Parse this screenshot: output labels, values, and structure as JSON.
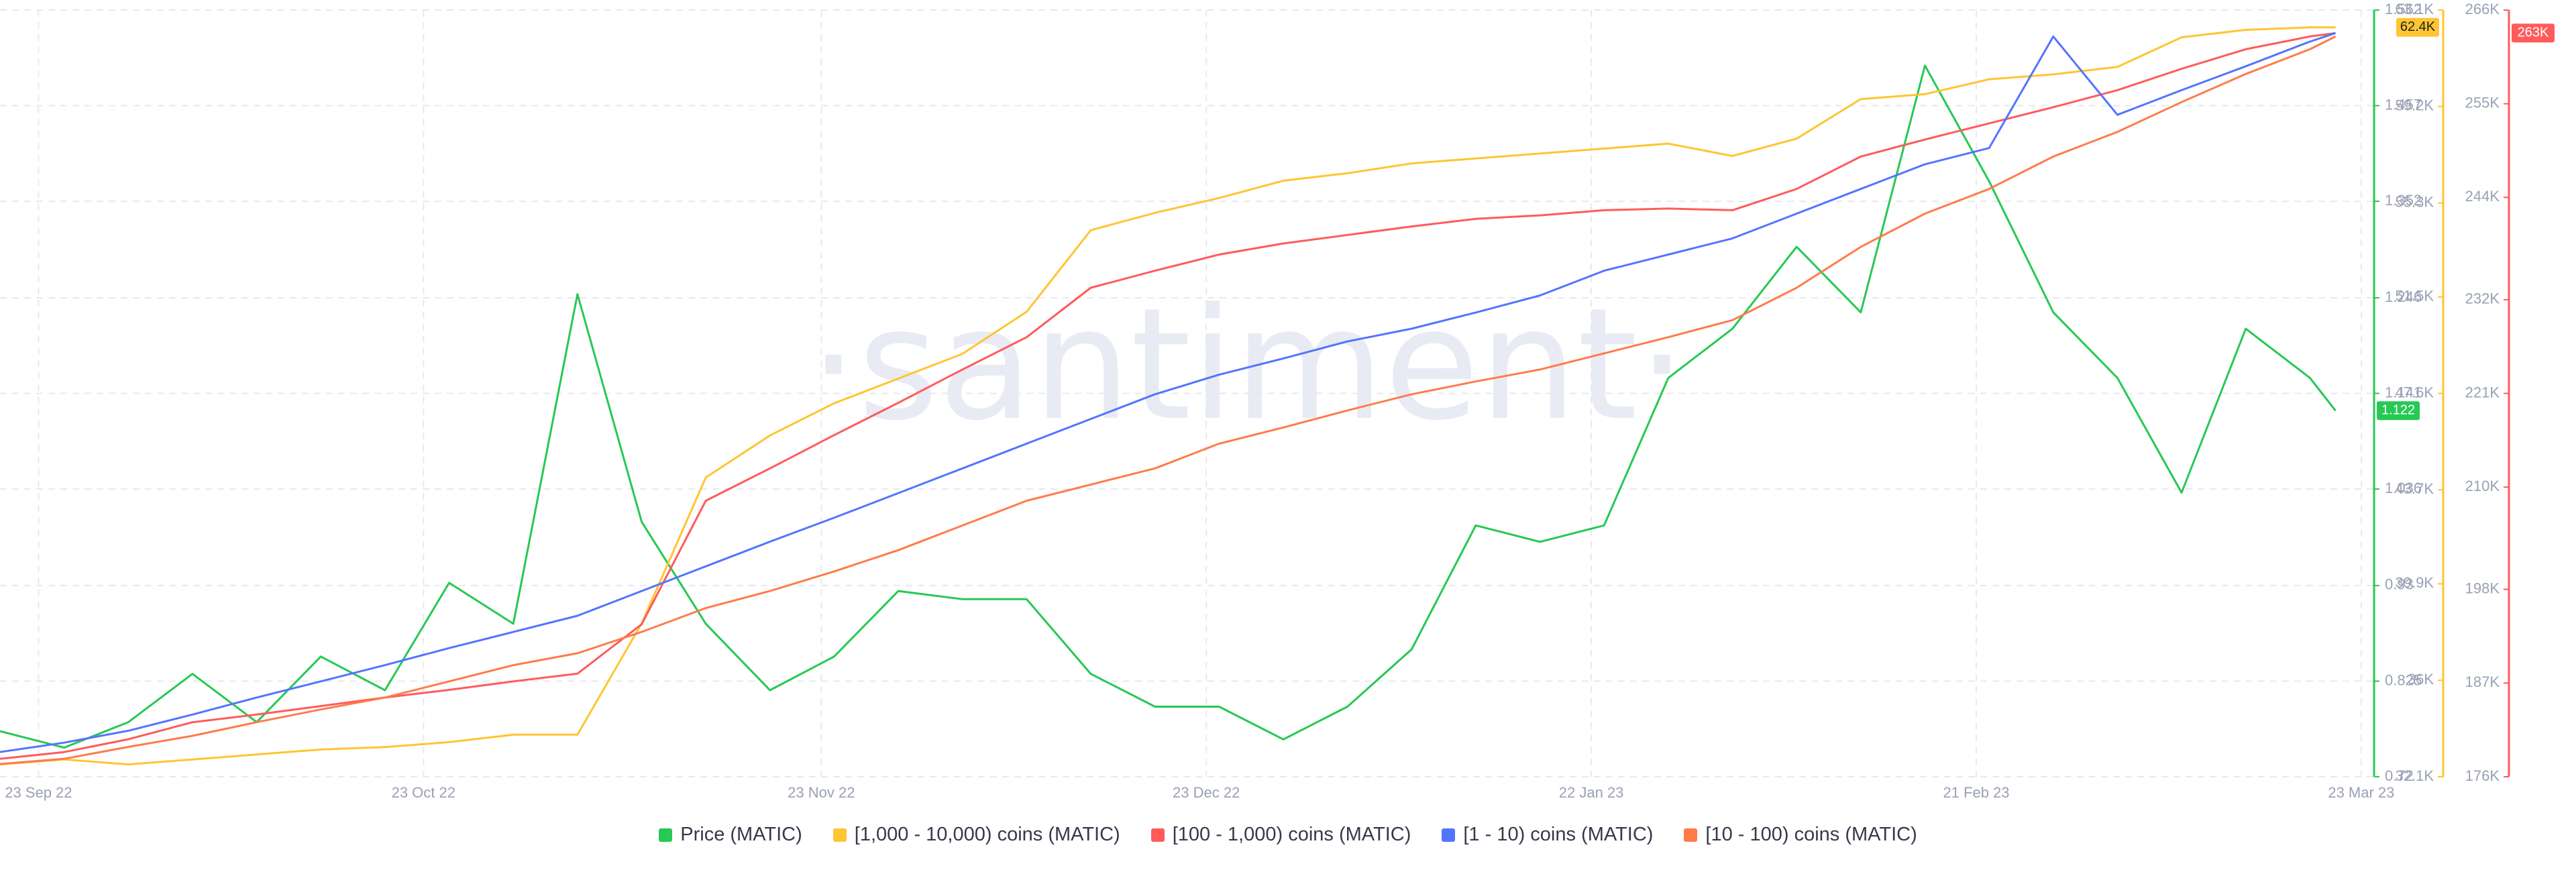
{
  "chart_data": {
    "type": "line",
    "watermark": "·santiment·",
    "x": [
      "2022-09-20",
      "2022-09-25",
      "2022-09-30",
      "2022-10-05",
      "2022-10-10",
      "2022-10-15",
      "2022-10-20",
      "2022-10-25",
      "2022-10-30",
      "2022-11-04",
      "2022-11-09",
      "2022-11-14",
      "2022-11-19",
      "2022-11-24",
      "2022-11-29",
      "2022-12-04",
      "2022-12-09",
      "2022-12-14",
      "2022-12-19",
      "2022-12-24",
      "2022-12-29",
      "2023-01-03",
      "2023-01-08",
      "2023-01-13",
      "2023-01-18",
      "2023-01-23",
      "2023-01-28",
      "2023-02-02",
      "2023-02-07",
      "2023-02-12",
      "2023-02-17",
      "2023-02-22",
      "2023-02-27",
      "2023-03-04",
      "2023-03-09",
      "2023-03-14",
      "2023-03-19",
      "2023-03-21"
    ],
    "xlim": [
      "2022-09-20",
      "2023-03-24"
    ],
    "xticks": [
      {
        "value": "2022-09-23",
        "label": "23 Sep 22"
      },
      {
        "value": "2022-10-23",
        "label": "23 Oct 22"
      },
      {
        "value": "2022-11-23",
        "label": "23 Nov 22"
      },
      {
        "value": "2022-12-23",
        "label": "23 Dec 22"
      },
      {
        "value": "2023-01-22",
        "label": "22 Jan 23"
      },
      {
        "value": "2023-02-21",
        "label": "21 Feb 23"
      },
      {
        "value": "2023-03-23",
        "label": "23 Mar 23"
      }
    ],
    "ylim": [
      0.72,
      1.562
    ],
    "yticks": [
      0.72,
      0.825,
      0.93,
      1.036,
      1.141,
      1.246,
      1.352,
      1.457,
      1.562
    ],
    "y2lim": [
      32100,
      63100
    ],
    "y2ticks": [
      {
        "value": 32100,
        "label": "32.1K"
      },
      {
        "value": 36000,
        "label": "36K"
      },
      {
        "value": 39900,
        "label": "39.9K"
      },
      {
        "value": 43700,
        "label": "43.7K"
      },
      {
        "value": 47600,
        "label": "47.6K"
      },
      {
        "value": 51500,
        "label": "51.5K"
      },
      {
        "value": 55300,
        "label": "55.3K"
      },
      {
        "value": 59200,
        "label": "59.2K"
      },
      {
        "value": 63100,
        "label": "63.1K"
      }
    ],
    "y3lim": [
      176000,
      266000
    ],
    "y3ticks": [
      {
        "value": 176000,
        "label": "176K"
      },
      {
        "value": 187000,
        "label": "187K"
      },
      {
        "value": 198000,
        "label": "198K"
      },
      {
        "value": 210000,
        "label": "210K"
      },
      {
        "value": 221000,
        "label": "221K"
      },
      {
        "value": 232000,
        "label": "232K"
      },
      {
        "value": 244000,
        "label": "244K"
      },
      {
        "value": 255000,
        "label": "255K"
      },
      {
        "value": 266000,
        "label": "266K"
      }
    ],
    "grid": true,
    "series": [
      {
        "name": "Price (MATIC)",
        "color": "#26c953",
        "axis": "y",
        "values": [
          0.77,
          0.752,
          0.78,
          0.833,
          0.78,
          0.852,
          0.815,
          0.933,
          0.888,
          1.25,
          1.0,
          0.888,
          0.815,
          0.852,
          0.924,
          0.915,
          0.915,
          0.833,
          0.797,
          0.797,
          0.761,
          0.797,
          0.86,
          0.996,
          0.978,
          0.996,
          1.158,
          1.212,
          1.302,
          1.23,
          1.501,
          1.374,
          1.23,
          1.158,
          1.032,
          1.212,
          1.158,
          1.122
        ]
      },
      {
        "name": "[1,000 - 10,000) coins (MATIC)",
        "color": "#ffc532",
        "axis": "y2",
        "values": [
          32600,
          32800,
          32600,
          32800,
          33000,
          33200,
          33300,
          33500,
          33800,
          33800,
          38300,
          44200,
          45900,
          47200,
          48200,
          49200,
          50900,
          54200,
          54900,
          55500,
          56200,
          56500,
          56900,
          57100,
          57300,
          57500,
          57700,
          57200,
          57900,
          59500,
          59700,
          60300,
          60500,
          60800,
          62000,
          62300,
          62400,
          62400
        ],
        "value_labels": [
          null,
          null,
          null,
          null,
          null,
          null,
          null,
          null,
          null,
          null,
          null,
          null,
          null,
          null,
          null,
          null,
          null,
          null,
          null,
          null,
          null,
          null,
          null,
          null,
          null,
          null,
          null,
          null,
          null,
          null,
          null,
          null,
          null,
          null,
          null,
          null,
          null,
          "62.4K"
        ]
      },
      {
        "name": "[100 - 1,000) coins (MATIC)",
        "color": "#ff5b5b",
        "axis": "y3",
        "values": [
          178100,
          178900,
          180400,
          182400,
          183300,
          184300,
          185300,
          186200,
          187200,
          188100,
          193900,
          208400,
          212200,
          216100,
          219900,
          223800,
          227600,
          233400,
          235400,
          237300,
          238600,
          239600,
          240600,
          241500,
          241900,
          242500,
          242700,
          242500,
          245000,
          248800,
          250800,
          252700,
          254600,
          256600,
          259100,
          261400,
          262900,
          263300
        ],
        "value_labels": [
          null,
          null,
          null,
          null,
          null,
          null,
          null,
          null,
          null,
          null,
          null,
          null,
          null,
          null,
          null,
          null,
          null,
          null,
          null,
          null,
          null,
          null,
          null,
          null,
          null,
          null,
          null,
          null,
          null,
          null,
          null,
          null,
          null,
          null,
          null,
          null,
          null,
          "263K"
        ]
      },
      {
        "name": "[1 - 10) coins (MATIC)",
        "color": "#5275ff",
        "axis": "y3",
        "values": [
          178900,
          180000,
          181400,
          183300,
          185300,
          187200,
          189100,
          191100,
          193000,
          194900,
          197800,
          200700,
          203600,
          206400,
          209300,
          212200,
          215100,
          218000,
          220900,
          223200,
          225100,
          227100,
          228600,
          230500,
          232500,
          235400,
          237300,
          239200,
          242100,
          245000,
          247900,
          249800,
          262900,
          253700,
          256600,
          259400,
          262300,
          263300
        ]
      },
      {
        "name": "[10 - 100) coins (MATIC)",
        "color": "#ff7b4a",
        "axis": "y3",
        "values": [
          177500,
          178100,
          179500,
          180800,
          182400,
          183900,
          185300,
          187200,
          189100,
          190500,
          193000,
          195800,
          197800,
          200100,
          202600,
          205500,
          208400,
          210300,
          212200,
          215100,
          217000,
          219000,
          220900,
          222400,
          223800,
          225700,
          227600,
          229600,
          233400,
          238200,
          242100,
          245000,
          248800,
          251700,
          255200,
          258500,
          261400,
          262900
        ]
      }
    ]
  }
}
